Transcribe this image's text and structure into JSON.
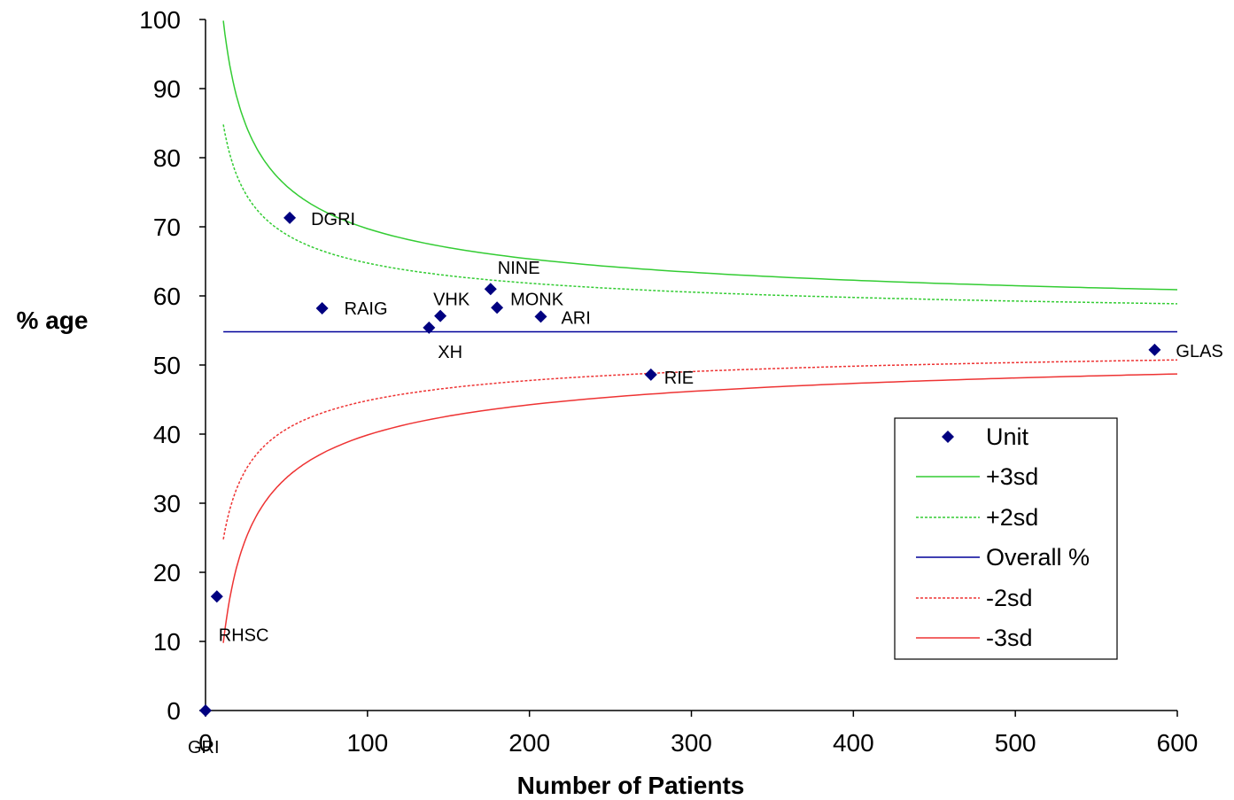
{
  "chart_data": {
    "type": "scatter",
    "title": "",
    "xlabel": "Number of Patients",
    "ylabel": "% age",
    "xlim": [
      0,
      600
    ],
    "ylim": [
      0,
      100
    ],
    "xticks": [
      0,
      100,
      200,
      300,
      400,
      500,
      600
    ],
    "yticks": [
      0,
      10,
      20,
      30,
      40,
      50,
      60,
      70,
      80,
      90,
      100
    ],
    "grid": false,
    "legend_position": "right",
    "overall_percent": 54.8,
    "series": [
      {
        "name": "Unit",
        "kind": "points",
        "color": "#000080",
        "marker": "diamond",
        "points": [
          {
            "label": "GRI",
            "x": 0,
            "y": 0
          },
          {
            "label": "RHSC",
            "x": 7,
            "y": 16.5
          },
          {
            "label": "DGRI",
            "x": 52,
            "y": 71.3
          },
          {
            "label": "RAIG",
            "x": 72,
            "y": 58.2
          },
          {
            "label": "XH",
            "x": 138,
            "y": 55.4
          },
          {
            "label": "VHK",
            "x": 145,
            "y": 57.1
          },
          {
            "label": "NINE",
            "x": 176,
            "y": 61
          },
          {
            "label": "MONK",
            "x": 180,
            "y": 58.3
          },
          {
            "label": "ARI",
            "x": 207,
            "y": 57
          },
          {
            "label": "RIE",
            "x": 275,
            "y": 48.6
          },
          {
            "label": "GLAS",
            "x": 586,
            "y": 52.2
          }
        ]
      },
      {
        "name": "+3sd",
        "kind": "limit",
        "sd": 3,
        "sign": 1,
        "color": "#33cc33",
        "dash": "solid"
      },
      {
        "name": "+2sd",
        "kind": "limit",
        "sd": 2,
        "sign": 1,
        "color": "#33cc33",
        "dash": "dashed"
      },
      {
        "name": "Overall %",
        "kind": "overall",
        "color": "#000099",
        "dash": "solid"
      },
      {
        "name": "-2sd",
        "kind": "limit",
        "sd": 2,
        "sign": -1,
        "color": "#ee3333",
        "dash": "dashed"
      },
      {
        "name": "-3sd",
        "kind": "limit",
        "sd": 3,
        "sign": -1,
        "color": "#ee3333",
        "dash": "solid"
      }
    ],
    "limit_n_range": [
      11,
      600
    ]
  }
}
